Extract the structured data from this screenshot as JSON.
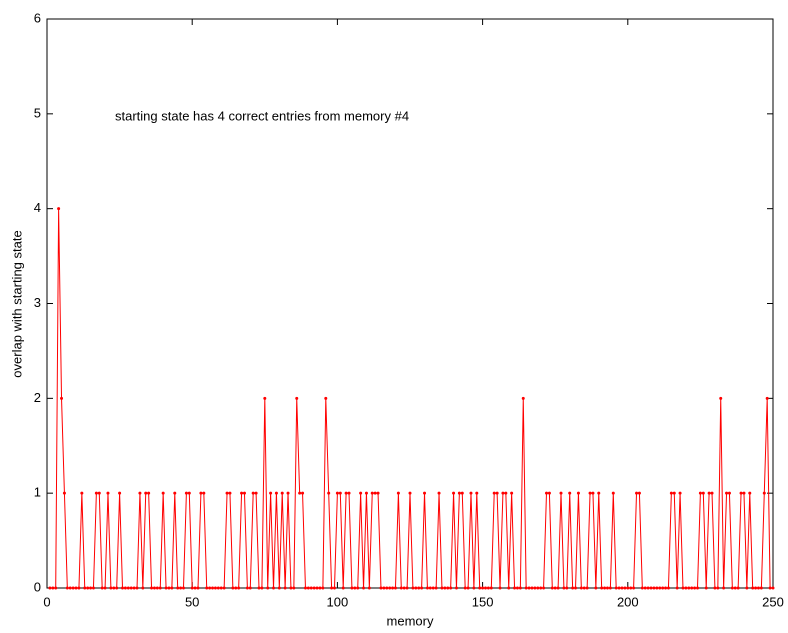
{
  "chart_data": {
    "type": "line",
    "annotation": "starting state has 4 correct entries from memory #4",
    "xlabel": "memory",
    "ylabel": "overlap with starting state",
    "xlim": [
      0,
      250
    ],
    "ylim": [
      0,
      6
    ],
    "xticks": [
      0,
      50,
      100,
      150,
      200,
      250
    ],
    "yticks": [
      0,
      1,
      2,
      3,
      4,
      5,
      6
    ],
    "x": [
      1,
      2,
      3,
      4,
      5,
      6,
      7,
      8,
      9,
      10,
      11,
      12,
      13,
      14,
      15,
      16,
      17,
      18,
      19,
      20,
      21,
      22,
      23,
      24,
      25,
      26,
      27,
      28,
      29,
      30,
      31,
      32,
      33,
      34,
      35,
      36,
      37,
      38,
      39,
      40,
      41,
      42,
      43,
      44,
      45,
      46,
      47,
      48,
      49,
      50,
      51,
      52,
      53,
      54,
      55,
      56,
      57,
      58,
      59,
      60,
      61,
      62,
      63,
      64,
      65,
      66,
      67,
      68,
      69,
      70,
      71,
      72,
      73,
      74,
      75,
      76,
      77,
      78,
      79,
      80,
      81,
      82,
      83,
      84,
      85,
      86,
      87,
      88,
      89,
      90,
      91,
      92,
      93,
      94,
      95,
      96,
      97,
      98,
      99,
      100,
      101,
      102,
      103,
      104,
      105,
      106,
      107,
      108,
      109,
      110,
      111,
      112,
      113,
      114,
      115,
      116,
      117,
      118,
      119,
      120,
      121,
      122,
      123,
      124,
      125,
      126,
      127,
      128,
      129,
      130,
      131,
      132,
      133,
      134,
      135,
      136,
      137,
      138,
      139,
      140,
      141,
      142,
      143,
      144,
      145,
      146,
      147,
      148,
      149,
      150,
      151,
      152,
      153,
      154,
      155,
      156,
      157,
      158,
      159,
      160,
      161,
      162,
      163,
      164,
      165,
      166,
      167,
      168,
      169,
      170,
      171,
      172,
      173,
      174,
      175,
      176,
      177,
      178,
      179,
      180,
      181,
      182,
      183,
      184,
      185,
      186,
      187,
      188,
      189,
      190,
      191,
      192,
      193,
      194,
      195,
      196,
      197,
      198,
      199,
      200,
      201,
      202,
      203,
      204,
      205,
      206,
      207,
      208,
      209,
      210,
      211,
      212,
      213,
      214,
      215,
      216,
      217,
      218,
      219,
      220,
      221,
      222,
      223,
      224,
      225,
      226,
      227,
      228,
      229,
      230,
      231,
      232,
      233,
      234,
      235,
      236,
      237,
      238,
      239,
      240,
      241,
      242,
      243,
      244,
      245,
      246,
      247,
      248,
      249,
      250
    ],
    "series": [
      {
        "color": "#ff0000",
        "values": [
          0,
          0,
          0,
          4,
          2,
          1,
          0,
          0,
          0,
          0,
          0,
          1,
          0,
          0,
          0,
          0,
          1,
          1,
          0,
          0,
          1,
          0,
          0,
          0,
          1,
          0,
          0,
          0,
          0,
          0,
          0,
          1,
          0,
          1,
          1,
          0,
          0,
          0,
          0,
          1,
          0,
          0,
          0,
          1,
          0,
          0,
          0,
          1,
          1,
          0,
          0,
          0,
          1,
          1,
          0,
          0,
          0,
          0,
          0,
          0,
          0,
          1,
          1,
          0,
          0,
          0,
          1,
          1,
          0,
          0,
          1,
          1,
          0,
          0,
          2,
          0,
          1,
          0,
          1,
          0,
          1,
          0,
          1,
          0,
          0,
          2,
          1,
          1,
          0,
          0,
          0,
          0,
          0,
          0,
          0,
          2,
          1,
          0,
          0,
          1,
          1,
          0,
          1,
          1,
          0,
          0,
          0,
          1,
          0,
          1,
          0,
          1,
          1,
          1,
          0,
          0,
          0,
          0,
          0,
          0,
          1,
          0,
          0,
          0,
          1,
          0,
          0,
          0,
          0,
          1,
          0,
          0,
          0,
          0,
          1,
          0,
          0,
          0,
          0,
          1,
          0,
          1,
          1,
          0,
          0,
          1,
          0,
          1,
          0,
          0,
          0,
          0,
          0,
          1,
          1,
          0,
          1,
          1,
          0,
          1,
          0,
          0,
          0,
          2,
          0,
          0,
          0,
          0,
          0,
          0,
          0,
          1,
          1,
          0,
          0,
          0,
          1,
          0,
          0,
          1,
          0,
          0,
          1,
          0,
          0,
          0,
          1,
          1,
          0,
          1,
          0,
          0,
          0,
          0,
          1,
          0,
          0,
          0,
          0,
          0,
          0,
          0,
          1,
          1,
          0,
          0,
          0,
          0,
          0,
          0,
          0,
          0,
          0,
          0,
          1,
          1,
          0,
          1,
          0,
          0,
          0,
          0,
          0,
          0,
          1,
          1,
          0,
          1,
          1,
          0,
          0,
          2,
          0,
          1,
          1,
          0,
          0,
          0,
          1,
          1,
          0,
          1,
          0,
          0,
          0,
          0,
          1,
          2,
          0,
          0
        ]
      }
    ]
  }
}
